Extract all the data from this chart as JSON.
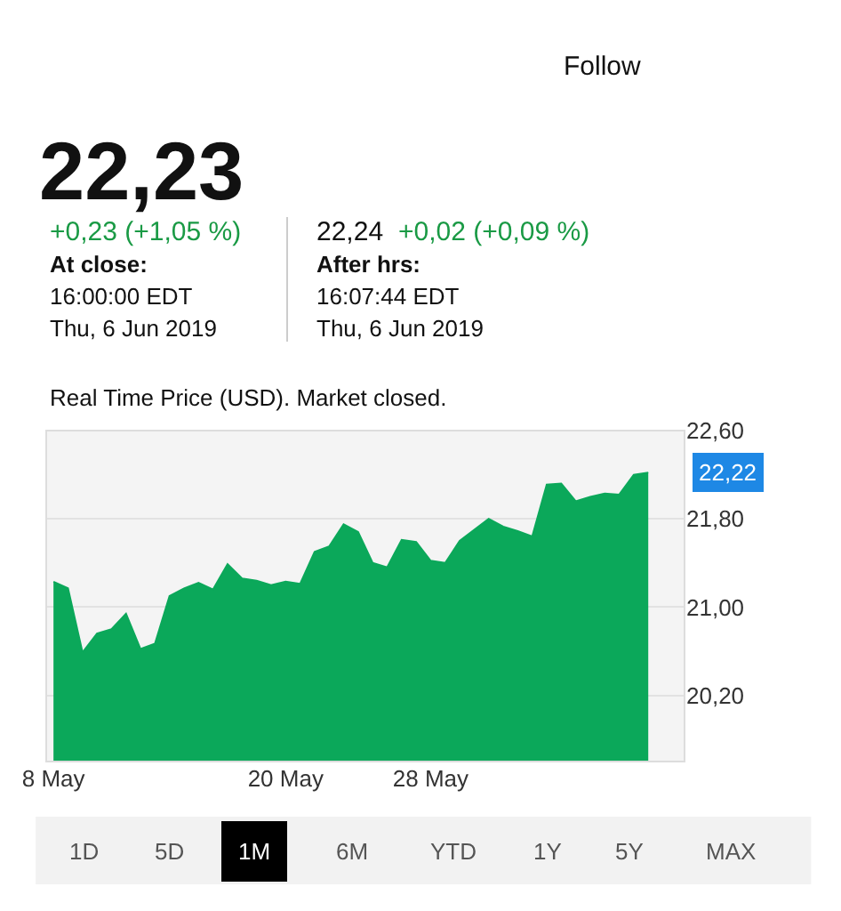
{
  "chart_data": {
    "type": "area",
    "title": "22,23",
    "annotations": [
      "+0,23 (+1,05 %)",
      "At close:",
      "16:00:00 EDT",
      "Thu, 6 Jun 2019",
      "22,24",
      "+0,02 (+0,09 %)",
      "After hrs:",
      "16:07:44 EDT",
      "Thu, 6 Jun 2019",
      "Real Time Price (USD). Market closed.",
      "Follow",
      "1D",
      "5D",
      "1M",
      "6M",
      "YTD",
      "1Y",
      "5Y",
      "MAX",
      "22,22"
    ],
    "categories": [
      "8 May",
      null,
      null,
      null,
      null,
      null,
      null,
      null,
      null,
      null,
      null,
      null,
      null,
      null,
      null,
      null,
      "20 May",
      null,
      null,
      null,
      null,
      null,
      null,
      null,
      null,
      null,
      "28 May",
      null,
      null,
      null,
      null,
      null,
      null,
      null,
      null,
      null,
      null,
      null,
      null,
      null,
      null,
      null,
      null,
      null
    ],
    "series": [
      {
        "color": "#0ba85a",
        "values": [
          21.23,
          21.17,
          20.59,
          20.76,
          20.8,
          20.94,
          20.62,
          20.67,
          21.1,
          21.17,
          21.22,
          21.16,
          21.39,
          21.26,
          21.24,
          21.2,
          21.23,
          21.21,
          21.5,
          21.55,
          21.75,
          21.68,
          21.4,
          21.36,
          21.61,
          21.59,
          21.42,
          21.4,
          21.6,
          21.7,
          21.8,
          21.73,
          21.69,
          21.64,
          22.11,
          22.12,
          21.96,
          22.0,
          22.03,
          22.02,
          22.2,
          22.22,
          null,
          null
        ]
      }
    ],
    "ylim": [
      19.6,
      22.6
    ],
    "yticks": [
      {
        "value": 22.6,
        "label": "22,60"
      },
      {
        "value": 21.8,
        "label": "21,80"
      },
      {
        "value": 21.0,
        "label": "21,00"
      },
      {
        "value": 20.2,
        "label": "20,20"
      }
    ],
    "grid": "y"
  }
}
